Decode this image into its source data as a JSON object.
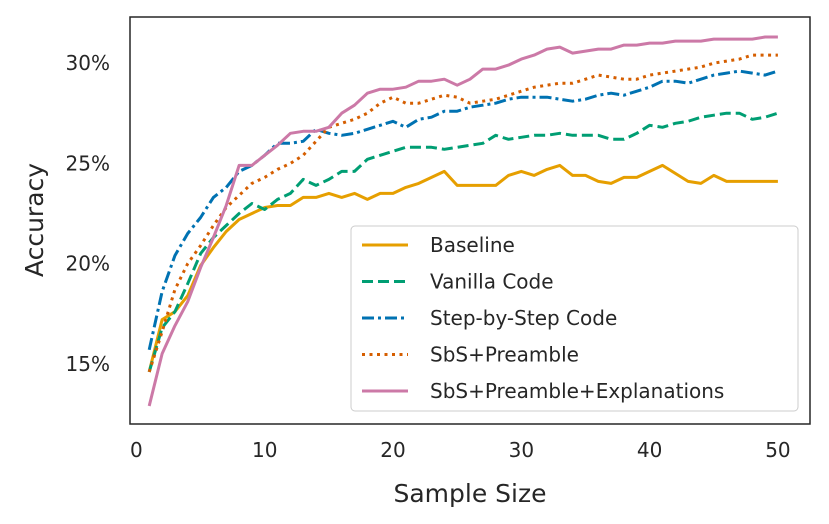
{
  "chart_data": {
    "type": "line",
    "title": "",
    "xlabel": "Sample Size",
    "ylabel": "Accuracy",
    "xlim": [
      -0.5,
      52.5
    ],
    "ylim": [
      12.0,
      32.3
    ],
    "xticks": [
      0,
      10,
      20,
      30,
      40,
      50
    ],
    "xtick_labels": [
      "0",
      "10",
      "20",
      "30",
      "40",
      "50"
    ],
    "yticks": [
      15,
      20,
      25,
      30
    ],
    "ytick_labels": [
      "15%",
      "20%",
      "25%",
      "30%"
    ],
    "grid": false,
    "legend_position": "lower-right",
    "x": [
      1,
      2,
      3,
      4,
      5,
      6,
      7,
      8,
      9,
      10,
      11,
      12,
      13,
      14,
      15,
      16,
      17,
      18,
      19,
      20,
      21,
      22,
      23,
      24,
      25,
      26,
      27,
      28,
      29,
      30,
      31,
      32,
      33,
      34,
      35,
      36,
      37,
      38,
      39,
      40,
      41,
      42,
      43,
      44,
      45,
      46,
      47,
      48,
      49,
      50
    ],
    "series": [
      {
        "name": "Baseline",
        "color": "#E69F00",
        "style": "solid",
        "values": [
          14.6,
          17.2,
          17.6,
          18.4,
          19.9,
          20.8,
          21.6,
          22.2,
          22.5,
          22.8,
          22.9,
          22.9,
          23.3,
          23.3,
          23.5,
          23.3,
          23.5,
          23.2,
          23.5,
          23.5,
          23.8,
          24.0,
          24.3,
          24.6,
          23.9,
          23.9,
          23.9,
          23.9,
          24.4,
          24.6,
          24.4,
          24.7,
          24.9,
          24.4,
          24.4,
          24.1,
          24.0,
          24.3,
          24.3,
          24.6,
          24.9,
          24.5,
          24.1,
          24.0,
          24.4,
          24.1,
          24.1,
          24.1,
          24.1,
          24.1
        ]
      },
      {
        "name": "Vanilla Code",
        "color": "#009E73",
        "style": "dashed",
        "values": [
          14.6,
          16.8,
          17.6,
          19.0,
          20.5,
          21.3,
          21.9,
          22.5,
          23.0,
          22.7,
          23.2,
          23.5,
          24.2,
          23.9,
          24.2,
          24.6,
          24.6,
          25.2,
          25.4,
          25.6,
          25.8,
          25.8,
          25.8,
          25.7,
          25.8,
          25.9,
          26.0,
          26.4,
          26.2,
          26.3,
          26.4,
          26.4,
          26.5,
          26.4,
          26.4,
          26.4,
          26.2,
          26.2,
          26.5,
          26.9,
          26.8,
          27.0,
          27.1,
          27.3,
          27.4,
          27.5,
          27.5,
          27.2,
          27.3,
          27.5
        ]
      },
      {
        "name": "Step-by-Step Code",
        "color": "#0072B2",
        "style": "dashdot",
        "values": [
          15.7,
          18.6,
          20.4,
          21.5,
          22.3,
          23.3,
          23.8,
          24.6,
          24.9,
          25.4,
          26.0,
          26.0,
          26.1,
          26.7,
          26.5,
          26.4,
          26.5,
          26.7,
          26.9,
          27.1,
          26.8,
          27.2,
          27.3,
          27.6,
          27.6,
          27.8,
          27.9,
          28.0,
          28.2,
          28.3,
          28.3,
          28.3,
          28.2,
          28.1,
          28.2,
          28.4,
          28.5,
          28.4,
          28.6,
          28.8,
          29.1,
          29.1,
          29.0,
          29.2,
          29.4,
          29.5,
          29.6,
          29.5,
          29.4,
          29.6
        ]
      },
      {
        "name": "SbS+Preamble",
        "color": "#D55E00",
        "style": "dotted",
        "values": [
          14.6,
          16.6,
          18.7,
          20.0,
          20.9,
          21.9,
          22.8,
          23.4,
          24.0,
          24.3,
          24.7,
          25.0,
          25.4,
          26.1,
          26.8,
          27.0,
          27.2,
          27.5,
          28.0,
          28.3,
          28.0,
          28.0,
          28.2,
          28.4,
          28.3,
          28.0,
          28.1,
          28.2,
          28.4,
          28.6,
          28.8,
          28.9,
          29.0,
          29.0,
          29.2,
          29.4,
          29.3,
          29.2,
          29.2,
          29.4,
          29.5,
          29.6,
          29.7,
          29.8,
          30.0,
          30.1,
          30.2,
          30.4,
          30.4,
          30.4
        ]
      },
      {
        "name": "SbS+Preamble+Explanations",
        "color": "#CC79A7",
        "style": "solid",
        "values": [
          12.9,
          15.5,
          16.9,
          18.1,
          19.8,
          21.3,
          22.9,
          24.9,
          24.9,
          25.4,
          25.9,
          26.5,
          26.6,
          26.6,
          26.8,
          27.5,
          27.9,
          28.5,
          28.7,
          28.7,
          28.8,
          29.1,
          29.1,
          29.2,
          28.9,
          29.2,
          29.7,
          29.7,
          29.9,
          30.2,
          30.4,
          30.7,
          30.8,
          30.5,
          30.6,
          30.7,
          30.7,
          30.9,
          30.9,
          31.0,
          31.0,
          31.1,
          31.1,
          31.1,
          31.2,
          31.2,
          31.2,
          31.2,
          31.3,
          31.3
        ]
      }
    ]
  }
}
